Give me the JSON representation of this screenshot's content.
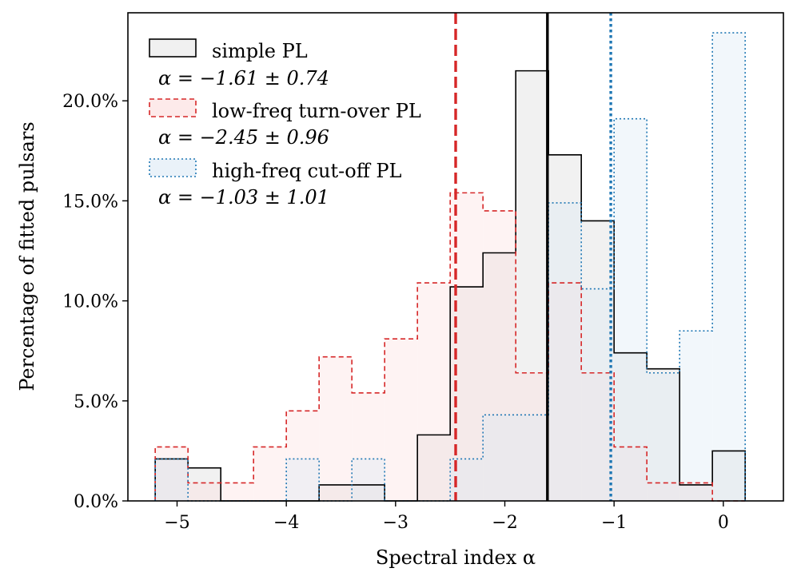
{
  "chart_data": {
    "type": "histogram",
    "xlabel": "Spectral index α",
    "ylabel": "Percentage of fitted pulsars",
    "xlim": [
      -5.45,
      0.55
    ],
    "ylim": [
      0,
      24.4
    ],
    "xticks": [
      -5,
      -4,
      -3,
      -2,
      -1,
      0
    ],
    "xtick_labels": [
      "−5",
      "−4",
      "−3",
      "−2",
      "−1",
      "0"
    ],
    "yticks": [
      0,
      5,
      10,
      15,
      20
    ],
    "ytick_labels": [
      "0.0%",
      "5.0%",
      "10.0%",
      "15.0%",
      "20.0%"
    ],
    "series": [
      {
        "name": "simple PL",
        "stat_label": "α = −1.61 ± 0.74",
        "edges": [
          -5.2,
          -4.9,
          -4.6,
          -4.3,
          -4.0,
          -3.7,
          -3.4,
          -3.1,
          -2.8,
          -2.5,
          -2.2,
          -1.9,
          -1.6,
          -1.3,
          -1.0,
          -0.7,
          -0.4,
          -0.1,
          0.2
        ],
        "values": [
          2.1,
          1.65,
          0,
          0,
          0,
          0.8,
          0.8,
          0,
          3.3,
          10.7,
          12.4,
          21.5,
          17.3,
          14.0,
          7.4,
          6.6,
          0.8,
          2.5
        ],
        "mean_line": -1.61,
        "color": "#000000",
        "fill": "#e6e6e6",
        "fill_opacity": 0.55,
        "dash": "none"
      },
      {
        "name": "low-freq turn-over PL",
        "stat_label": "α = −2.45 ± 0.96",
        "edges": [
          -5.2,
          -4.9,
          -4.6,
          -4.3,
          -4.0,
          -3.7,
          -3.4,
          -3.1,
          -2.8,
          -2.5,
          -2.2,
          -1.9,
          -1.6,
          -1.3,
          -1.0,
          -0.7,
          -0.4,
          -0.1,
          0.2
        ],
        "values": [
          2.7,
          0.9,
          0.9,
          2.7,
          4.5,
          7.2,
          5.4,
          8.1,
          10.9,
          15.4,
          14.5,
          6.4,
          10.9,
          6.4,
          2.7,
          0.9,
          0.9,
          0
        ],
        "mean_line": -2.45,
        "color": "#d62728",
        "fill": "#fbdcdc",
        "fill_opacity": 0.35,
        "dash": "6,4"
      },
      {
        "name": "high-freq cut-off PL",
        "stat_label": "α = −1.03 ± 1.01",
        "edges": [
          -5.2,
          -4.9,
          -4.6,
          -4.3,
          -4.0,
          -3.7,
          -3.4,
          -3.1,
          -2.8,
          -2.5,
          -2.2,
          -1.9,
          -1.6,
          -1.3,
          -1.0,
          -0.7,
          -0.4,
          -0.1,
          0.2
        ],
        "values": [
          2.1,
          0,
          0,
          0,
          2.1,
          0,
          2.1,
          0,
          0,
          2.1,
          4.3,
          4.3,
          14.9,
          10.6,
          19.1,
          6.4,
          8.5,
          23.4
        ],
        "mean_line": -1.03,
        "color": "#1f77b4",
        "fill": "#dbe8f3",
        "fill_opacity": 0.35,
        "dash": "2,3"
      }
    ]
  }
}
